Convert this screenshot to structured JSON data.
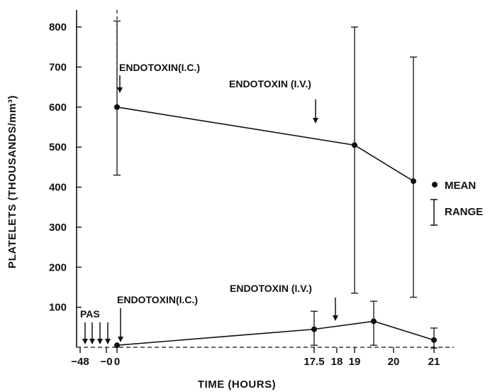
{
  "chart_data": {
    "type": "line",
    "title": "",
    "xlabel": "TIME (HOURS)",
    "ylabel": "PLATELETS (THOUSANDS/mm³)",
    "ylim": [
      0,
      800
    ],
    "y_ticks": [
      800,
      700,
      600,
      500,
      400,
      300,
      200,
      100
    ],
    "x_ticks": [
      "-48",
      "-0",
      "0",
      "17.5",
      "18",
      "19",
      "20",
      "21"
    ],
    "x_axis_note": "non-uniform time axis; categories placed as printed",
    "legend": {
      "position": "right",
      "mean_label": "MEAN",
      "range_label": "RANGE"
    },
    "series": [
      {
        "points": [
          {
            "x": "0",
            "y": 600,
            "range": [
              430,
              815
            ]
          },
          {
            "x": "19",
            "y": 505,
            "range": [
              135,
              800
            ]
          },
          {
            "x": "20.5",
            "y": 415,
            "range": [
              125,
              725
            ]
          }
        ]
      },
      {
        "points": [
          {
            "x": "0",
            "y": 5
          },
          {
            "x": "17.5",
            "y": 45,
            "range": [
              5,
              90
            ]
          },
          {
            "x": "19.5",
            "y": 65,
            "range": [
              5,
              115
            ]
          },
          {
            "x": "21",
            "y": 18,
            "range": [
              -2,
              48
            ]
          }
        ]
      }
    ],
    "annotations": {
      "upper_ic": "ENDOTOXIN(I.C.)",
      "upper_iv": "ENDOTOXIN (I.V.)",
      "lower_ic": "ENDOTOXIN(I.C.)",
      "lower_iv": "ENDOTOXIN (I.V.)",
      "pas": "PAS"
    }
  }
}
